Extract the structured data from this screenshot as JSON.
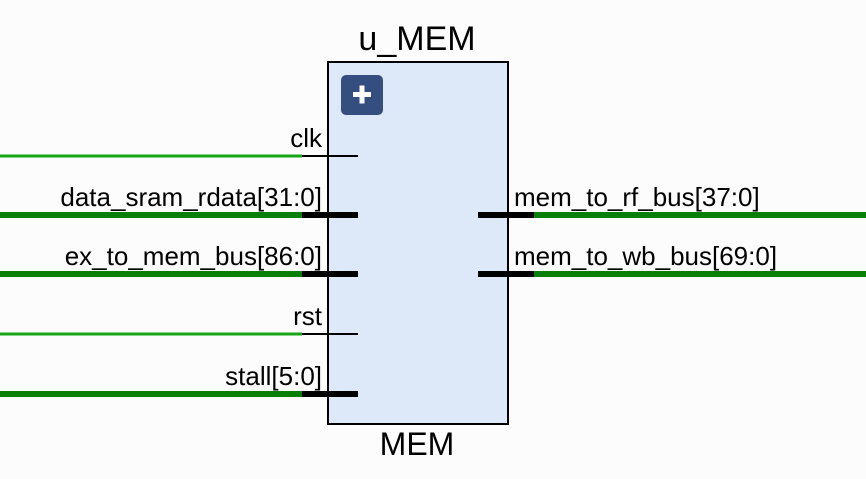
{
  "instance_name": "u_MEM",
  "module_name": "MEM",
  "colors": {
    "wire": "#16a616",
    "bus": "#087f08",
    "block_fill": "#dde9f8",
    "block_stroke": "#000000",
    "expand_button": "#344e80",
    "pin": "#000000"
  },
  "expand_icon": "plus-icon",
  "input_ports": [
    {
      "name": "clk",
      "kind": "wire"
    },
    {
      "name": "data_sram_rdata[31:0]",
      "kind": "bus"
    },
    {
      "name": "ex_to_mem_bus[86:0]",
      "kind": "bus"
    },
    {
      "name": "rst",
      "kind": "wire"
    },
    {
      "name": "stall[5:0]",
      "kind": "bus"
    }
  ],
  "output_ports": [
    {
      "name": "mem_to_rf_bus[37:0]",
      "kind": "bus"
    },
    {
      "name": "mem_to_wb_bus[69:0]",
      "kind": "bus"
    }
  ]
}
